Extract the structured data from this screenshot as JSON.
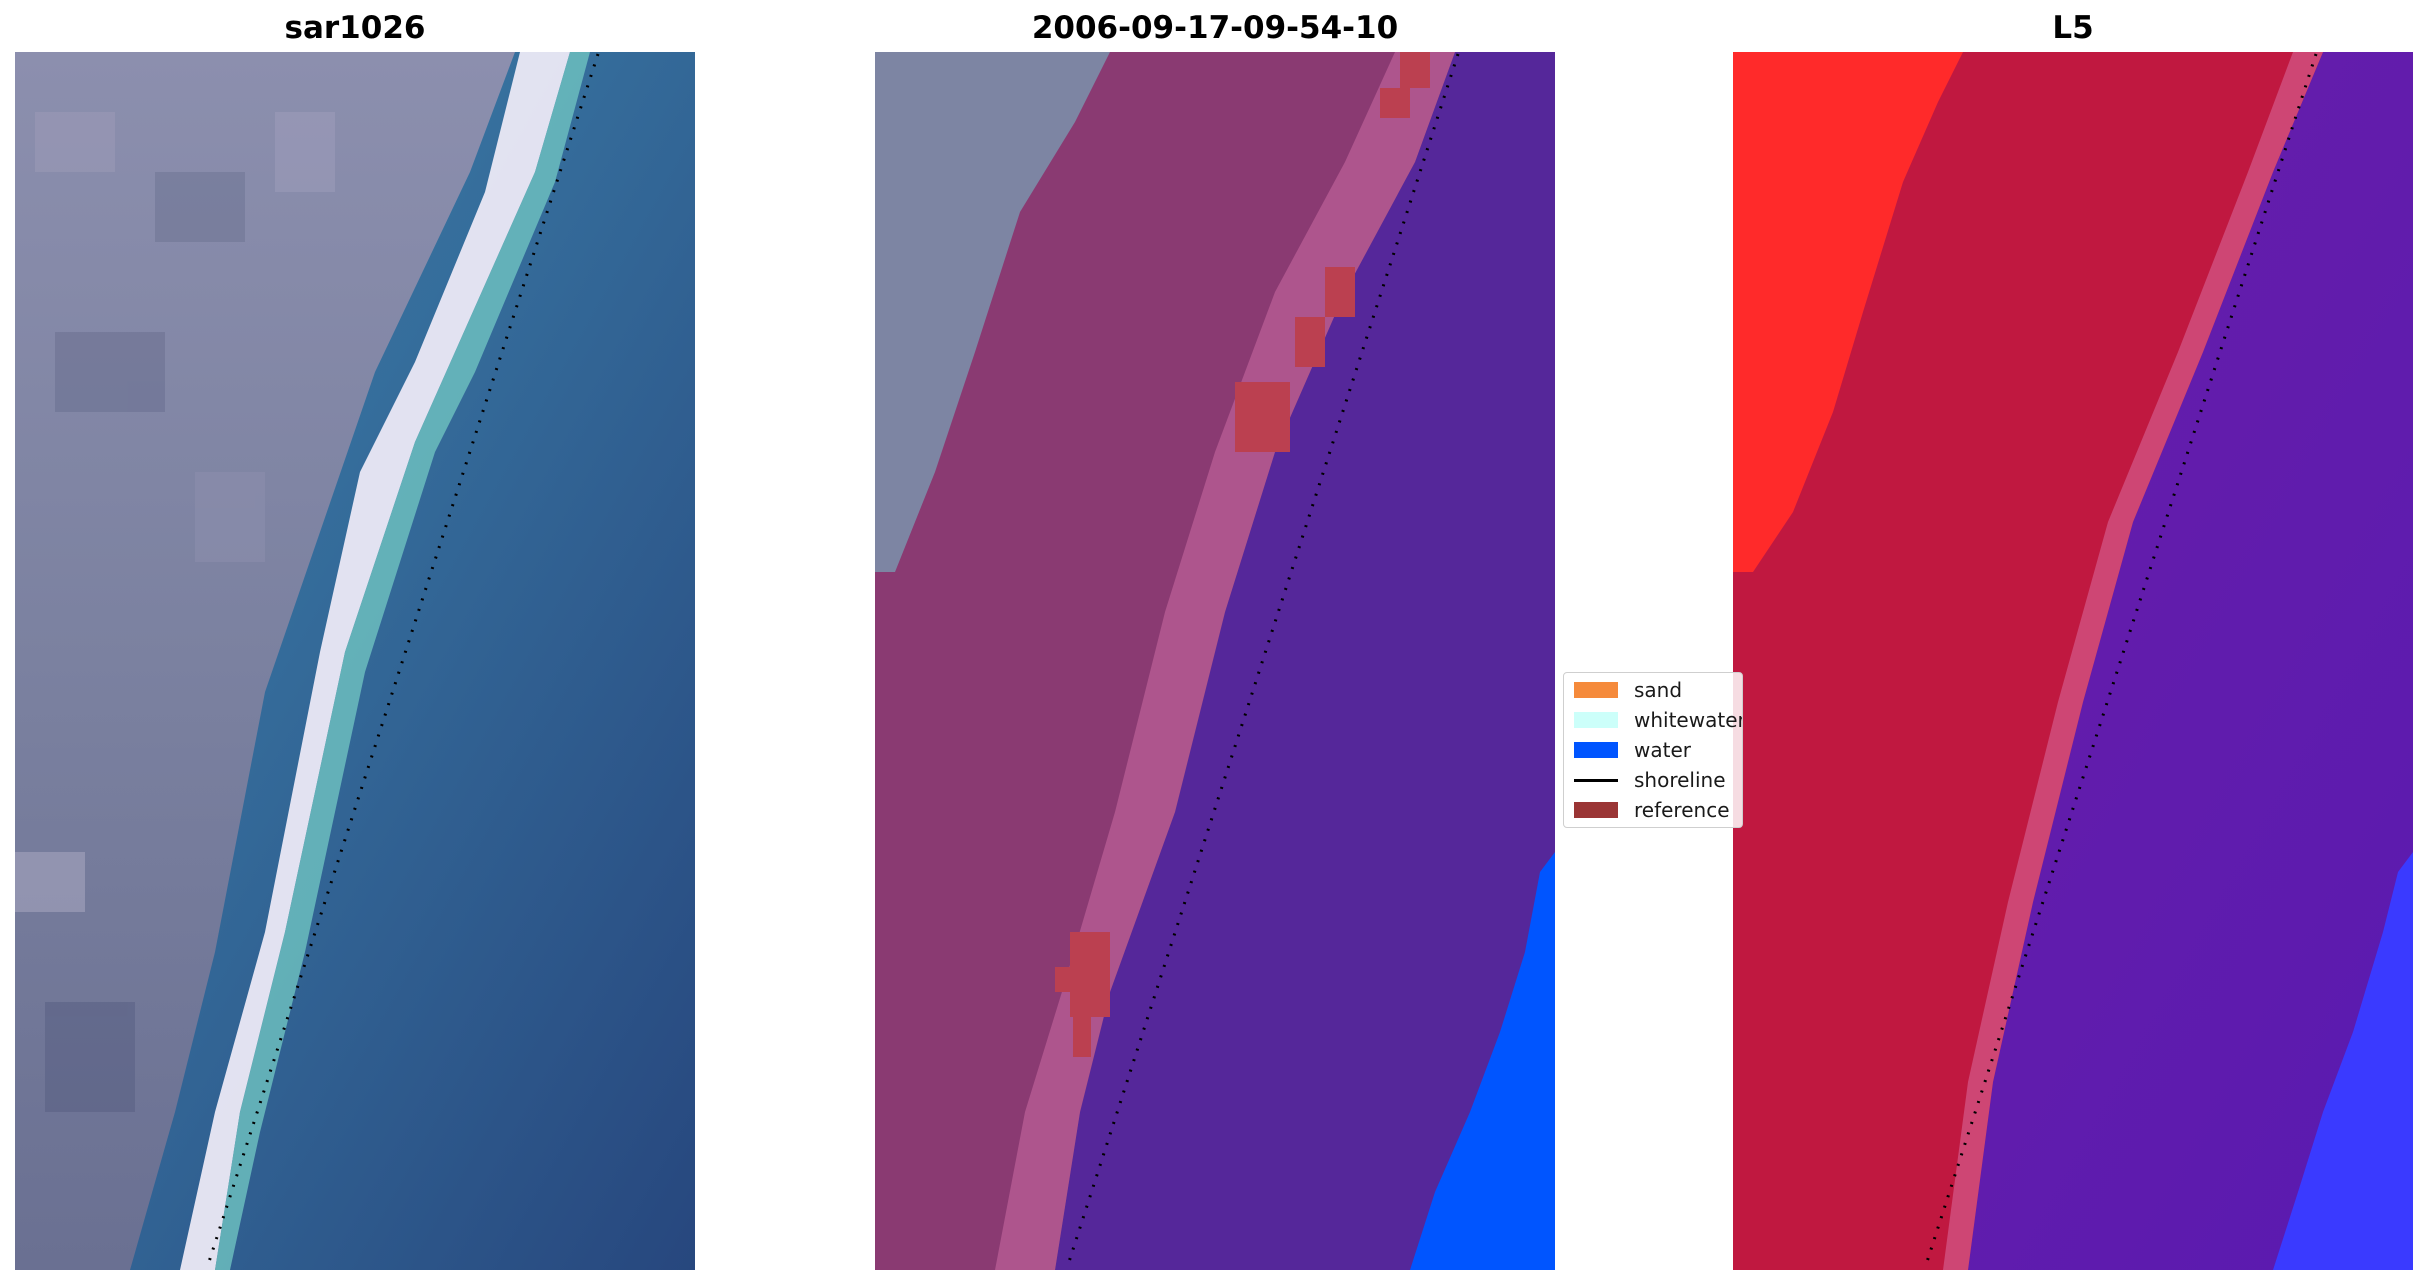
{
  "panels": [
    {
      "title": "sar1026"
    },
    {
      "title": "2006-09-17-09-54-10"
    },
    {
      "title": "L5"
    }
  ],
  "legend": {
    "items": [
      {
        "label": "sand",
        "color": "#f58a3b",
        "kind": "patch"
      },
      {
        "label": "whitewater",
        "color": "#ccfffa",
        "kind": "patch"
      },
      {
        "label": "water",
        "color": "#0055ff",
        "kind": "patch"
      },
      {
        "label": "shoreline",
        "color": "#000000",
        "kind": "line"
      },
      {
        "label": "reference",
        "color": "#9a3535",
        "kind": "patch"
      }
    ]
  },
  "colors": {
    "land_gray": "#7d85a0",
    "beach_white": "#e8e6f2",
    "sea_blue": "#2d6a99",
    "sand_overlay": "#8a3a72",
    "water_overlay": "#55279a",
    "bright_water": "#0055ff",
    "swir_red": "#c01840",
    "swir_land_red": "#ff2020",
    "swir_water_purple": "#6a1fa8"
  }
}
